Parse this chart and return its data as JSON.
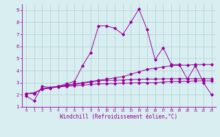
{
  "xlabel": "Windchill (Refroidissement éolien,°C)",
  "bg_color": "#d8eef0",
  "line_color": "#990099",
  "grid_color": "#b0cfd4",
  "xlim": [
    -0.5,
    23.5
  ],
  "ylim": [
    1.0,
    9.5
  ],
  "xticks": [
    0,
    1,
    2,
    3,
    4,
    5,
    6,
    7,
    8,
    9,
    10,
    11,
    12,
    13,
    14,
    15,
    16,
    17,
    18,
    19,
    20,
    21,
    22,
    23
  ],
  "yticks": [
    1,
    2,
    3,
    4,
    5,
    6,
    7,
    8,
    9
  ],
  "lines": [
    {
      "x": [
        0,
        1,
        2,
        3,
        4,
        5,
        6,
        7,
        8,
        9,
        10,
        11,
        12,
        13,
        14,
        15,
        16,
        17,
        18,
        19,
        20,
        21,
        22,
        23
      ],
      "y": [
        1.9,
        1.5,
        2.7,
        2.6,
        2.7,
        2.9,
        3.1,
        4.4,
        5.5,
        7.7,
        7.7,
        7.5,
        7.0,
        8.0,
        9.1,
        7.4,
        4.9,
        5.9,
        4.5,
        4.5,
        3.3,
        4.4,
        3.0,
        2.0
      ]
    },
    {
      "x": [
        0,
        1,
        2,
        3,
        4,
        5,
        6,
        7,
        8,
        9,
        10,
        11,
        12,
        13,
        14,
        15,
        16,
        17,
        18,
        19,
        20,
        21,
        22,
        23
      ],
      "y": [
        2.1,
        2.1,
        2.5,
        2.6,
        2.7,
        2.8,
        2.9,
        3.0,
        3.1,
        3.2,
        3.3,
        3.4,
        3.5,
        3.7,
        3.9,
        4.1,
        4.2,
        4.3,
        4.4,
        4.45,
        4.45,
        4.5,
        4.5,
        4.5
      ]
    },
    {
      "x": [
        0,
        1,
        2,
        3,
        4,
        5,
        6,
        7,
        8,
        9,
        10,
        11,
        12,
        13,
        14,
        15,
        16,
        17,
        18,
        19,
        20,
        21,
        22,
        23
      ],
      "y": [
        2.1,
        2.15,
        2.45,
        2.55,
        2.65,
        2.7,
        2.75,
        2.8,
        2.85,
        2.9,
        2.92,
        2.94,
        2.96,
        2.98,
        3.0,
        3.0,
        3.0,
        3.05,
        3.1,
        3.1,
        3.12,
        3.15,
        3.15,
        3.15
      ]
    },
    {
      "x": [
        0,
        1,
        2,
        3,
        4,
        5,
        6,
        7,
        8,
        9,
        10,
        11,
        12,
        13,
        14,
        15,
        16,
        17,
        18,
        19,
        20,
        21,
        22,
        23
      ],
      "y": [
        2.1,
        2.15,
        2.5,
        2.6,
        2.7,
        2.75,
        2.85,
        2.95,
        3.05,
        3.15,
        3.2,
        3.2,
        3.22,
        3.25,
        3.28,
        3.3,
        3.3,
        3.32,
        3.33,
        3.33,
        3.33,
        3.33,
        3.33,
        3.33
      ]
    }
  ]
}
